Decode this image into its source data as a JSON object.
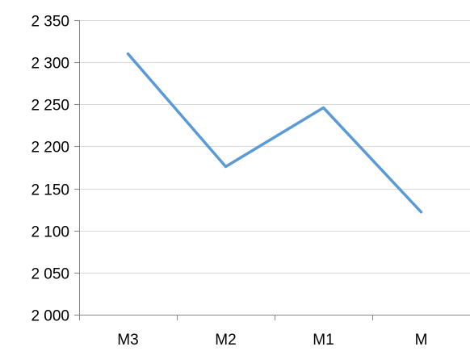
{
  "chart_data": {
    "type": "line",
    "title": "",
    "xlabel": "",
    "ylabel": "",
    "categories": [
      "M3",
      "M2",
      "M1",
      "M"
    ],
    "series": [
      {
        "values": [
          2310,
          2176,
          2246,
          2122
        ]
      }
    ],
    "ylim": [
      2000,
      2350
    ],
    "yticks": [
      2000,
      2050,
      2100,
      2150,
      2200,
      2250,
      2300,
      2350
    ],
    "ytick_labels": [
      "2 000",
      "2 050",
      "2 100",
      "2 150",
      "2 200",
      "2 250",
      "2 300",
      "2 350"
    ],
    "grid": true,
    "legend": "none",
    "colors": {
      "series": "#5b9bd5",
      "grid": "#d9d9d9",
      "axis": "#868686"
    }
  }
}
